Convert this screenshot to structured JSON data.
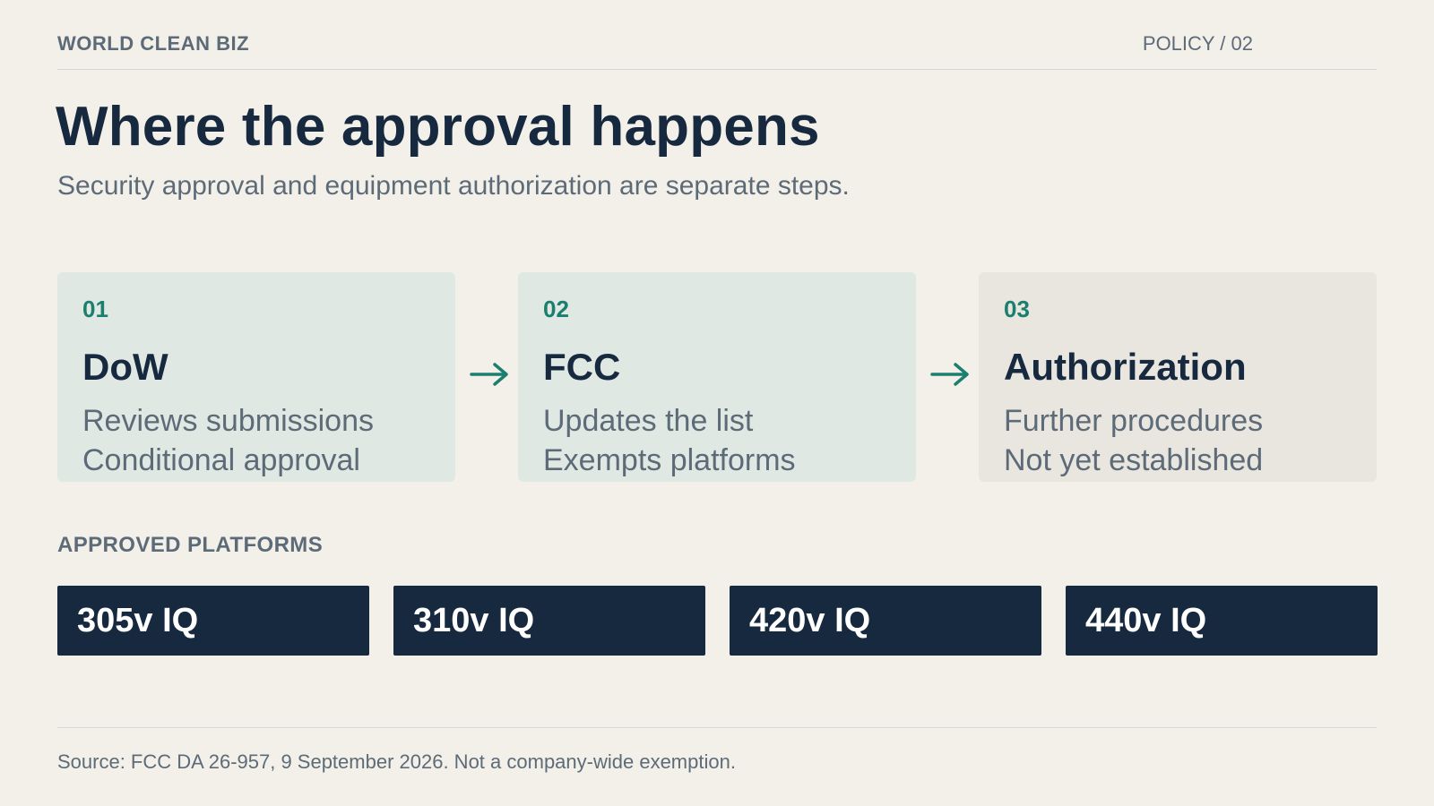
{
  "header": {
    "brand": "WORLD CLEAN BIZ",
    "section_code": "POLICY / 02"
  },
  "title": "Where the approval happens",
  "subtitle": "Security approval and equipment authorization are separate steps.",
  "steps": [
    {
      "number": "01",
      "title": "DoW",
      "lines": [
        "Reviews submissions",
        "Conditional approval"
      ]
    },
    {
      "number": "02",
      "title": "FCC",
      "lines": [
        "Updates the list",
        "Exempts platforms"
      ]
    },
    {
      "number": "03",
      "title": "Authorization",
      "lines": [
        "Further procedures",
        "Not yet established"
      ]
    }
  ],
  "arrows": {
    "icon": "arrow-right-icon",
    "color": "#1a7f6e"
  },
  "platforms": {
    "label": "APPROVED PLATFORMS",
    "items": [
      "305v IQ",
      "310v IQ",
      "420v IQ",
      "440v IQ"
    ]
  },
  "footer": "Source: FCC DA 26-957, 9 September 2026. Not a company-wide exemption.",
  "colors": {
    "background": "#f3f0e9",
    "navy": "#17293f",
    "accent_teal": "#1a7f6e",
    "step_active_bg": "#dfe8e2",
    "step_pending_bg": "#e9e5df",
    "muted_text": "#5d6b78"
  }
}
